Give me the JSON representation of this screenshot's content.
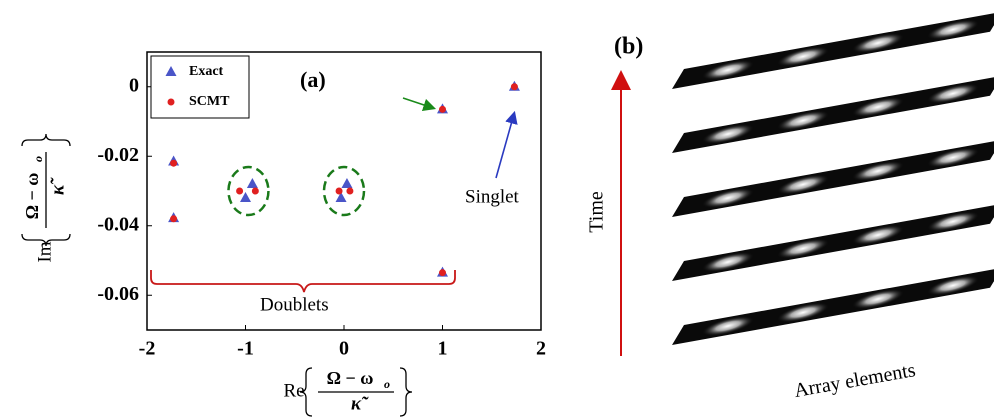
{
  "chart_data": {
    "type": "scatter",
    "panel_label": "(a)",
    "xlabel": {
      "prefix": "Re",
      "numerator": "Ω − ω",
      "subscript": "o",
      "denominator": "κ̃"
    },
    "ylabel": {
      "prefix": "Im",
      "numerator": "Ω − ω",
      "subscript": "o",
      "denominator": "κ̃"
    },
    "xlim": [
      -2,
      2
    ],
    "xticks": [
      -2,
      -1,
      0,
      1,
      2
    ],
    "ylim": [
      -0.07,
      0.01
    ],
    "yticks": [
      0,
      -0.02,
      -0.04,
      -0.06
    ],
    "legend": "upper left",
    "series": [
      {
        "name": "Exact",
        "color": "#4a55c8",
        "marker": "triangle",
        "x": [
          -1.73,
          -1.73,
          -0.93,
          -1.0,
          0.03,
          -0.03,
          1.0,
          1.0,
          1.73
        ],
        "values": [
          -0.0215,
          -0.0378,
          -0.028,
          -0.032,
          -0.028,
          -0.032,
          -0.0065,
          -0.0535,
          0
        ]
      },
      {
        "name": "SCMT",
        "color": "#e02020",
        "marker": "circle",
        "x": [
          -1.73,
          -1.73,
          -0.9,
          -1.06,
          0.06,
          -0.05,
          1.0,
          1.0,
          1.73
        ],
        "values": [
          -0.022,
          -0.038,
          -0.03,
          -0.03,
          -0.03,
          -0.03,
          -0.0065,
          -0.0535,
          0
        ]
      }
    ],
    "annotations": {
      "singlet": "Singlet",
      "doublets": "Doublets"
    }
  },
  "panel_b": {
    "label": "(b)",
    "time_label": "Time",
    "array_label": "Array elements"
  }
}
